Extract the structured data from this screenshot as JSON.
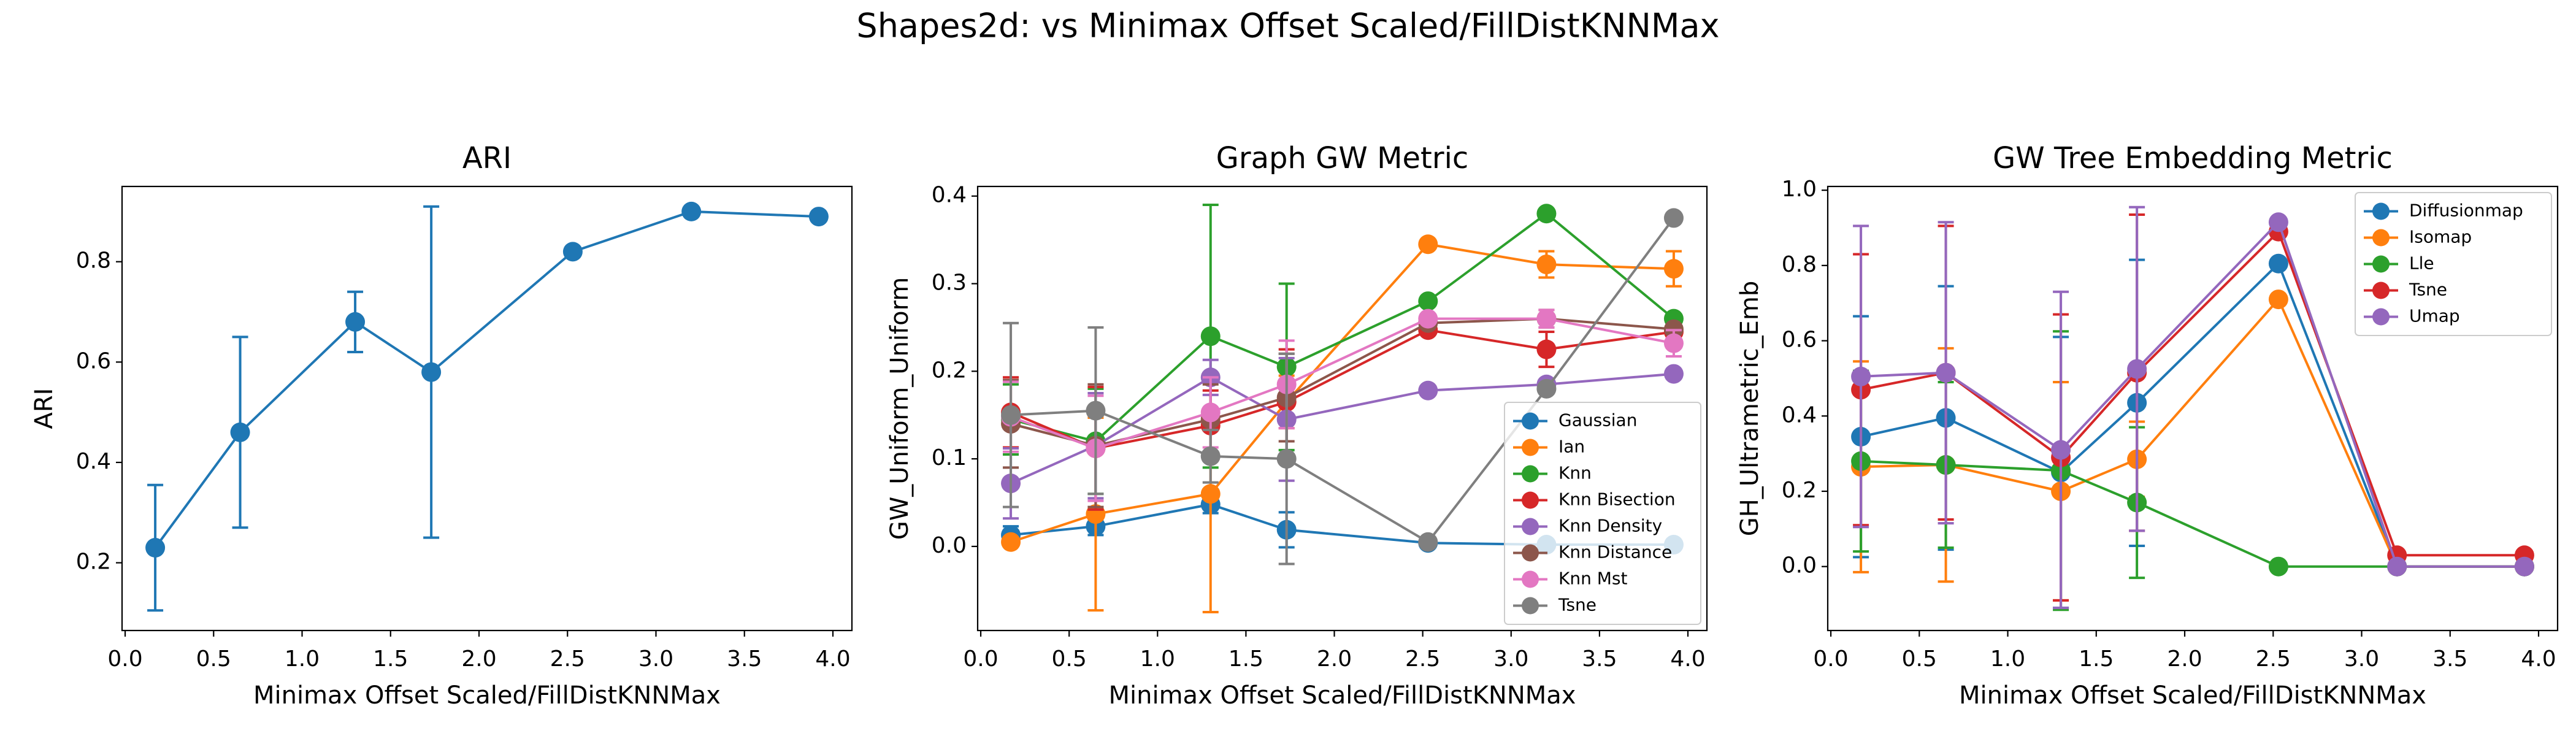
{
  "title": "Shapes2d: vs Minimax Offset Scaled/FillDistKNNMax",
  "chart_data": [
    {
      "type": "line",
      "title": "ARI",
      "xlabel": "Minimax Offset Scaled/FillDistKNNMax",
      "ylabel": "ARI",
      "x": [
        0.17,
        0.65,
        1.3,
        1.73,
        2.53,
        3.2,
        3.92
      ],
      "values": [
        0.23,
        0.46,
        0.68,
        0.58,
        0.82,
        0.9,
        0.89
      ],
      "errors": [
        0.125,
        0.19,
        0.06,
        0.33,
        0,
        0,
        0
      ],
      "color": "#1f77b4",
      "xlim": [
        -0.0175,
        4.1075
      ],
      "ylim": [
        0.065,
        0.95
      ],
      "xticks": [
        {
          "value": 0,
          "label": "0.0"
        },
        0.5,
        {
          "value": 1,
          "label": "1.0"
        },
        1.5,
        {
          "value": 2,
          "label": "2.0"
        },
        2.5,
        {
          "value": 3,
          "label": "3.0"
        },
        3.5,
        {
          "value": 4,
          "label": "4.0"
        }
      ],
      "yticks": [
        0.2,
        0.4,
        0.6,
        0.8
      ]
    },
    {
      "type": "line",
      "title": "Graph GW Metric",
      "xlabel": "Minimax Offset Scaled/FillDistKNNMax",
      "ylabel": "GW_Uniform_Uniform",
      "x": [
        0.17,
        0.65,
        1.3,
        1.73,
        2.53,
        3.2,
        3.92
      ],
      "legend": "lower right",
      "series": [
        {
          "name": "Gaussian",
          "color": "#1f77b4",
          "values": [
            0.013,
            0.023,
            0.048,
            0.019,
            0.004,
            0.002,
            0.002
          ],
          "errors": [
            0.01,
            0.01,
            0.01,
            0.02,
            0,
            0,
            0
          ]
        },
        {
          "name": "Ian",
          "color": "#ff7f0e",
          "values": [
            0.005,
            0.037,
            0.06,
            0.165,
            0.345,
            0.322,
            0.317
          ],
          "errors": [
            0.005,
            0.11,
            0.135,
            0.03,
            0,
            0.015,
            0.02
          ]
        },
        {
          "name": "Knn",
          "color": "#2ca02c",
          "values": [
            0.145,
            0.12,
            0.24,
            0.205,
            0.28,
            0.38,
            0.26
          ],
          "errors": [
            0.04,
            0.06,
            0.15,
            0.095,
            0,
            0,
            0
          ]
        },
        {
          "name": "Knn Bisection",
          "color": "#d62728",
          "values": [
            0.153,
            0.112,
            0.138,
            0.165,
            0.247,
            0.225,
            0.245
          ],
          "errors": [
            0.04,
            0.07,
            0.04,
            0.06,
            0,
            0.02,
            0
          ]
        },
        {
          "name": "Knn Density",
          "color": "#9467bd",
          "values": [
            0.072,
            0.115,
            0.193,
            0.145,
            0.178,
            0.185,
            0.197
          ],
          "errors": [
            0.04,
            0.06,
            0.02,
            0.07,
            0,
            0,
            0
          ]
        },
        {
          "name": "Knn Distance",
          "color": "#8c564b",
          "values": [
            0.14,
            0.115,
            0.145,
            0.17,
            0.255,
            0.26,
            0.248
          ],
          "errors": [
            0.05,
            0.07,
            0.04,
            0.05,
            0,
            0.01,
            0
          ]
        },
        {
          "name": "Knn Mst",
          "color": "#e377c2",
          "values": [
            0.148,
            0.112,
            0.153,
            0.185,
            0.26,
            0.26,
            0.232
          ],
          "errors": [
            0.04,
            0.06,
            0.04,
            0.05,
            0,
            0.01,
            0.015
          ]
        },
        {
          "name": "Tsne",
          "color": "#7f7f7f",
          "values": [
            0.15,
            0.155,
            0.103,
            0.1,
            0.005,
            0.18,
            0.375
          ],
          "errors": [
            0.105,
            0.095,
            0.03,
            0.12,
            0,
            0,
            0
          ]
        }
      ],
      "xlim": [
        -0.0175,
        4.1075
      ],
      "ylim": [
        -0.096,
        0.411
      ],
      "xticks": [
        {
          "value": 0,
          "label": "0.0"
        },
        0.5,
        {
          "value": 1,
          "label": "1.0"
        },
        1.5,
        {
          "value": 2,
          "label": "2.0"
        },
        2.5,
        {
          "value": 3,
          "label": "3.0"
        },
        3.5,
        {
          "value": 4,
          "label": "4.0"
        }
      ],
      "yticks": [
        {
          "value": 0,
          "label": "0.0"
        },
        0.1,
        0.2,
        0.3,
        0.4
      ]
    },
    {
      "type": "line",
      "title": "GW Tree Embedding Metric",
      "xlabel": "Minimax Offset Scaled/FillDistKNNMax",
      "ylabel": "GH_Ultrametric_Emb",
      "x": [
        0.17,
        0.65,
        1.3,
        1.73,
        2.53,
        3.2,
        3.92
      ],
      "legend": "upper right",
      "series": [
        {
          "name": "Diffusionmap",
          "color": "#1f77b4",
          "values": [
            0.345,
            0.395,
            0.25,
            0.435,
            0.805,
            0,
            0
          ],
          "errors": [
            0.32,
            0.35,
            0.36,
            0.38,
            0,
            0,
            0
          ]
        },
        {
          "name": "Isomap",
          "color": "#ff7f0e",
          "values": [
            0.265,
            0.27,
            0.2,
            0.285,
            0.71,
            0,
            0
          ],
          "errors": [
            0.28,
            0.31,
            0.29,
            0.1,
            0,
            0,
            0
          ]
        },
        {
          "name": "Lle",
          "color": "#2ca02c",
          "values": [
            0.28,
            0.27,
            0.255,
            0.17,
            0,
            0,
            0
          ],
          "errors": [
            0.24,
            0.22,
            0.37,
            0.2,
            0,
            0,
            0
          ]
        },
        {
          "name": "Tsne",
          "color": "#d62728",
          "values": [
            0.47,
            0.515,
            0.29,
            0.515,
            0.89,
            0.03,
            0.03
          ],
          "errors": [
            0.36,
            0.39,
            0.38,
            0.42,
            0,
            0,
            0
          ]
        },
        {
          "name": "Umap",
          "color": "#9467bd",
          "values": [
            0.505,
            0.515,
            0.31,
            0.525,
            0.915,
            0,
            0
          ],
          "errors": [
            0.4,
            0.4,
            0.42,
            0.43,
            0,
            0,
            0
          ]
        }
      ],
      "xlim": [
        -0.0175,
        4.1075
      ],
      "ylim": [
        -0.17,
        1.01
      ],
      "xticks": [
        {
          "value": 0,
          "label": "0.0"
        },
        0.5,
        {
          "value": 1,
          "label": "1.0"
        },
        1.5,
        {
          "value": 2,
          "label": "2.0"
        },
        2.5,
        {
          "value": 3,
          "label": "3.0"
        },
        3.5,
        {
          "value": 4,
          "label": "4.0"
        }
      ],
      "yticks": [
        {
          "value": 0,
          "label": "0.0"
        },
        0.2,
        0.4,
        0.6,
        0.8,
        {
          "value": 1,
          "label": "1.0"
        }
      ]
    }
  ]
}
